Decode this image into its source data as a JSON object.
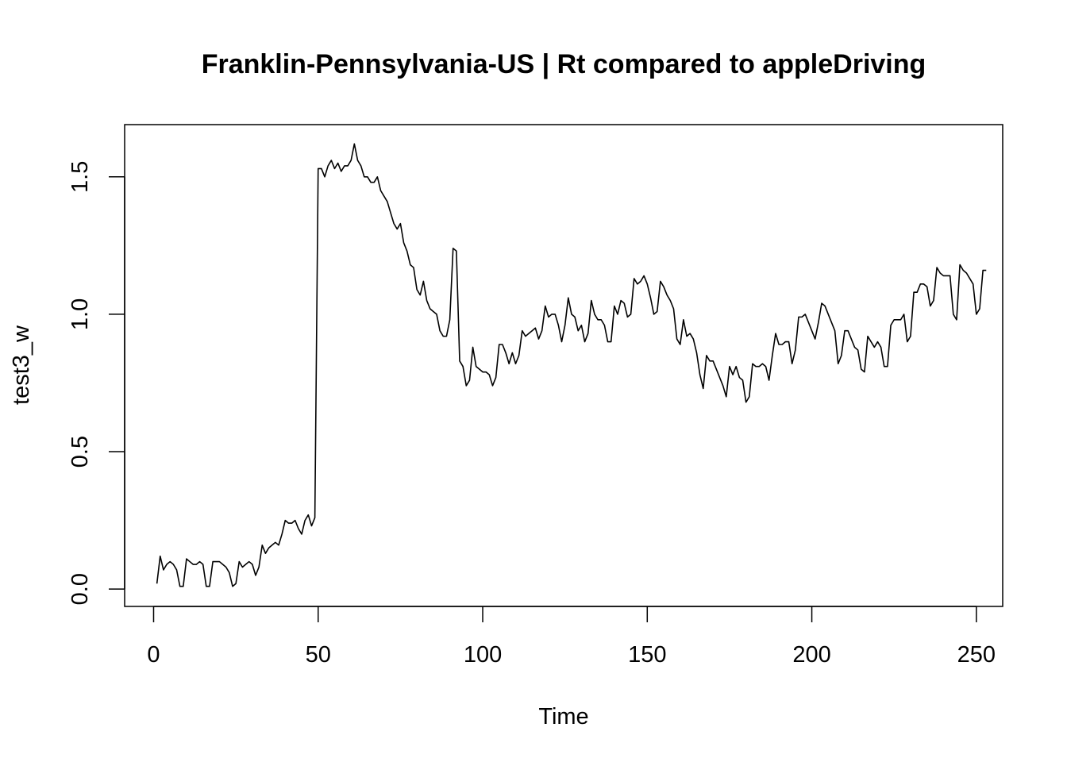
{
  "chart_data": {
    "type": "line",
    "title": "Franklin-Pennsylvania-US | Rt compared to appleDriving",
    "xlabel": "Time",
    "ylabel": "test3_w",
    "xlim": [
      -8.8,
      258
    ],
    "ylim": [
      -0.063,
      1.69
    ],
    "x_ticks": [
      0,
      50,
      100,
      150,
      200,
      250
    ],
    "y_ticks": [
      0.0,
      0.5,
      1.0,
      1.5
    ],
    "x_tick_labels": [
      "0",
      "50",
      "100",
      "150",
      "200",
      "250"
    ],
    "y_tick_labels": [
      "0.0",
      "0.5",
      "1.0",
      "1.5"
    ],
    "grid": false,
    "series": [
      {
        "x_start": 1,
        "values": [
          0.02,
          0.12,
          0.07,
          0.09,
          0.1,
          0.09,
          0.07,
          0.01,
          0.01,
          0.11,
          0.1,
          0.09,
          0.09,
          0.1,
          0.09,
          0.01,
          0.01,
          0.1,
          0.1,
          0.1,
          0.09,
          0.08,
          0.06,
          0.01,
          0.02,
          0.1,
          0.08,
          0.09,
          0.1,
          0.09,
          0.05,
          0.08,
          0.16,
          0.13,
          0.15,
          0.16,
          0.17,
          0.16,
          0.2,
          0.25,
          0.24,
          0.24,
          0.25,
          0.22,
          0.2,
          0.25,
          0.27,
          0.23,
          0.26,
          1.53,
          1.53,
          1.5,
          1.54,
          1.56,
          1.53,
          1.55,
          1.52,
          1.54,
          1.54,
          1.56,
          1.62,
          1.56,
          1.54,
          1.5,
          1.5,
          1.48,
          1.48,
          1.5,
          1.45,
          1.43,
          1.41,
          1.37,
          1.33,
          1.31,
          1.33,
          1.26,
          1.23,
          1.18,
          1.17,
          1.09,
          1.07,
          1.12,
          1.05,
          1.02,
          1.01,
          1.0,
          0.94,
          0.92,
          0.92,
          0.98,
          1.24,
          1.23,
          0.83,
          0.81,
          0.74,
          0.76,
          0.88,
          0.81,
          0.8,
          0.79,
          0.79,
          0.78,
          0.74,
          0.77,
          0.89,
          0.89,
          0.86,
          0.82,
          0.86,
          0.82,
          0.85,
          0.94,
          0.92,
          0.93,
          0.94,
          0.95,
          0.91,
          0.94,
          1.03,
          0.99,
          1.0,
          1.0,
          0.96,
          0.9,
          0.96,
          1.06,
          1.0,
          0.99,
          0.94,
          0.96,
          0.9,
          0.93,
          1.05,
          1.0,
          0.98,
          0.98,
          0.96,
          0.9,
          0.9,
          1.03,
          1.0,
          1.05,
          1.04,
          0.99,
          1.0,
          1.13,
          1.11,
          1.12,
          1.14,
          1.11,
          1.06,
          1.0,
          1.01,
          1.12,
          1.1,
          1.07,
          1.05,
          1.02,
          0.91,
          0.89,
          0.98,
          0.92,
          0.93,
          0.91,
          0.86,
          0.78,
          0.73,
          0.85,
          0.83,
          0.83,
          0.8,
          0.77,
          0.74,
          0.7,
          0.81,
          0.78,
          0.81,
          0.77,
          0.76,
          0.68,
          0.7,
          0.82,
          0.81,
          0.81,
          0.82,
          0.81,
          0.76,
          0.85,
          0.93,
          0.89,
          0.89,
          0.9,
          0.9,
          0.82,
          0.87,
          0.99,
          0.99,
          1.0,
          0.97,
          0.94,
          0.91,
          0.97,
          1.04,
          1.03,
          1.0,
          0.97,
          0.94,
          0.82,
          0.85,
          0.94,
          0.94,
          0.91,
          0.88,
          0.87,
          0.8,
          0.79,
          0.92,
          0.9,
          0.88,
          0.9,
          0.88,
          0.81,
          0.81,
          0.96,
          0.98,
          0.98,
          0.98,
          1.0,
          0.9,
          0.92,
          1.08,
          1.08,
          1.11,
          1.11,
          1.1,
          1.03,
          1.05,
          1.17,
          1.15,
          1.14,
          1.14,
          1.14,
          1.0,
          0.98,
          1.18,
          1.16,
          1.15,
          1.13,
          1.11,
          1.0,
          1.02,
          1.16,
          1.16
        ]
      }
    ]
  }
}
